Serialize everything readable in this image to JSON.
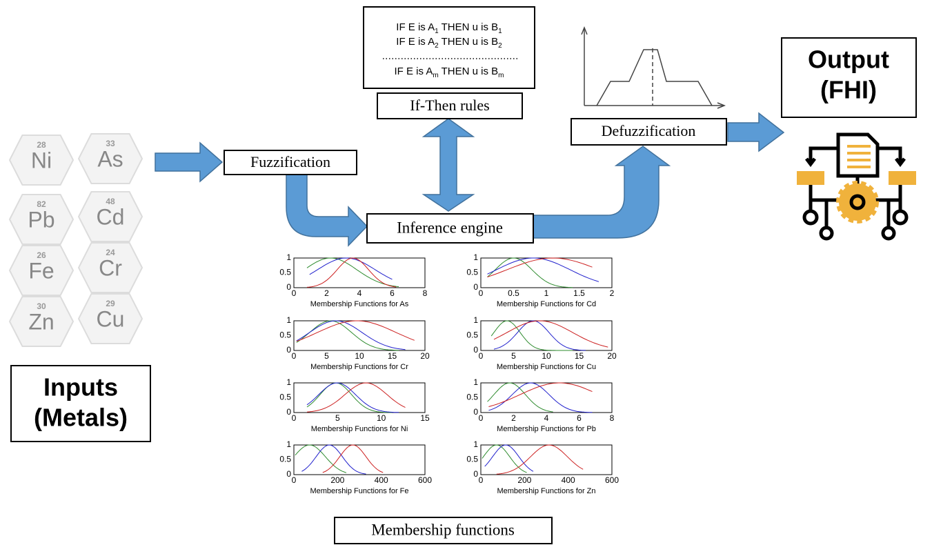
{
  "inputs": {
    "elements": [
      {
        "number": "28",
        "symbol": "Ni"
      },
      {
        "number": "33",
        "symbol": "As"
      },
      {
        "number": "82",
        "symbol": "Pb"
      },
      {
        "number": "48",
        "symbol": "Cd"
      },
      {
        "number": "26",
        "symbol": "Fe"
      },
      {
        "number": "24",
        "symbol": "Cr"
      },
      {
        "number": "30",
        "symbol": "Zn"
      },
      {
        "number": "29",
        "symbol": "Cu"
      }
    ],
    "label": [
      "Inputs",
      "(Metals)"
    ]
  },
  "rules": {
    "lines": [
      {
        "a": "IF E  is  A",
        "sub_a": "1",
        "b": " THEN u is B",
        "sub_b": "1"
      },
      {
        "a": "IF E  is  A",
        "sub_a": "2",
        "b": " THEN u is B",
        "sub_b": "2"
      },
      {
        "a": "IF E  is  A",
        "sub_a": "m",
        "b": " THEN u is B",
        "sub_b": "m"
      }
    ],
    "label": "If-Then rules"
  },
  "steps": {
    "fuzzification": "Fuzzification",
    "inference": "Inference engine",
    "defuzzification": "Defuzzification",
    "membership": "Membership functions"
  },
  "output": {
    "label": [
      "Output",
      "(FHI)"
    ]
  },
  "membership_plots": [
    {
      "title": "Membership Functions for As",
      "xticks": [
        "0",
        "2",
        "4",
        "6",
        "8"
      ],
      "yticks": [
        "0",
        "0.5",
        "1"
      ]
    },
    {
      "title": "Membership Functions for Cd",
      "xticks": [
        "0",
        "0.5",
        "1",
        "1.5",
        "2"
      ],
      "yticks": [
        "0",
        "0.5",
        "1"
      ]
    },
    {
      "title": "Membership Functions for Cr",
      "xticks": [
        "0",
        "5",
        "10",
        "15",
        "20"
      ],
      "yticks": [
        "0",
        "0.5",
        "1"
      ]
    },
    {
      "title": "Membership Functions for Cu",
      "xticks": [
        "0",
        "5",
        "10",
        "15",
        "20"
      ],
      "yticks": [
        "0",
        "0.5",
        "1"
      ]
    },
    {
      "title": "Membership Functions for Ni",
      "xticks": [
        "0",
        "5",
        "10",
        "15"
      ],
      "yticks": [
        "0",
        "0.5",
        "1"
      ]
    },
    {
      "title": "Membership Functions for Pb",
      "xticks": [
        "0",
        "2",
        "4",
        "6",
        "8"
      ],
      "yticks": [
        "0",
        "0.5",
        "1"
      ]
    },
    {
      "title": "Membership Functions for Fe",
      "xticks": [
        "0",
        "200",
        "400",
        "600"
      ],
      "yticks": [
        "0",
        "0.5",
        "1"
      ]
    },
    {
      "title": "Membership Functions for Zn",
      "xticks": [
        "0",
        "200",
        "400",
        "600"
      ],
      "yticks": [
        "0",
        "0.5",
        "1"
      ]
    }
  ]
}
